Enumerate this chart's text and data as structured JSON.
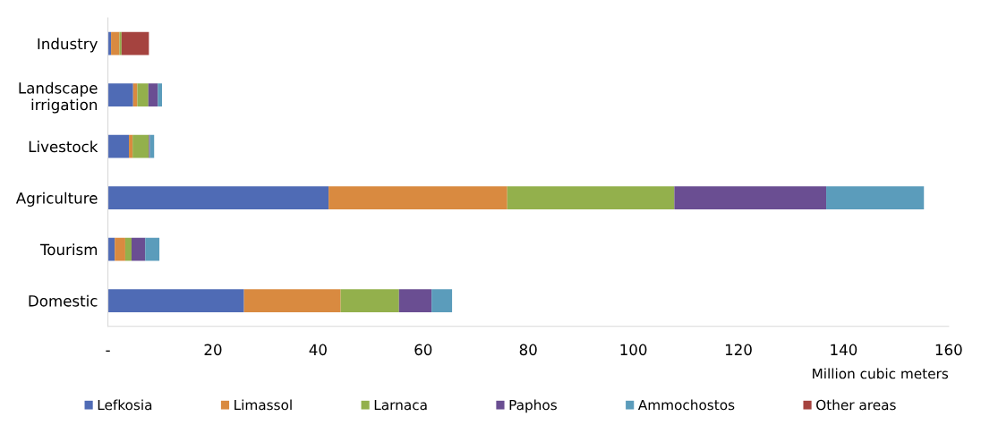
{
  "chart_data": {
    "type": "bar",
    "orientation": "horizontal",
    "stacked": true,
    "categories": [
      "Industry",
      "Landscape irrigation",
      "Livestock",
      "Agriculture",
      "Tourism",
      "Domestic"
    ],
    "series": [
      {
        "name": "Lefkosia",
        "color": "#4f6bb5",
        "values": [
          0.6,
          4.8,
          4.0,
          42.0,
          1.3,
          25.9
        ]
      },
      {
        "name": "Limassol",
        "color": "#d98a40",
        "values": [
          1.6,
          0.8,
          0.7,
          34.0,
          2.0,
          18.4
        ]
      },
      {
        "name": "Larnaca",
        "color": "#93b04c",
        "values": [
          0.4,
          2.1,
          3.1,
          31.8,
          1.2,
          11.1
        ]
      },
      {
        "name": "Paphos",
        "color": "#6a4e92",
        "values": [
          0,
          1.8,
          0.2,
          28.9,
          2.6,
          6.2
        ]
      },
      {
        "name": "Ammochostos",
        "color": "#5b9cbb",
        "values": [
          0,
          0.8,
          0.8,
          18.6,
          2.7,
          3.9
        ]
      },
      {
        "name": "Other areas",
        "color": "#a5433f",
        "values": [
          5.2,
          0,
          0,
          0,
          0,
          0
        ]
      }
    ],
    "xlabel": "Million cubic meters",
    "xlim": [
      0,
      160
    ],
    "xticks": [
      {
        "value": 0,
        "label": "-"
      },
      20,
      40,
      60,
      80,
      100,
      120,
      140,
      160
    ],
    "grid": false,
    "legend": "bottom"
  }
}
